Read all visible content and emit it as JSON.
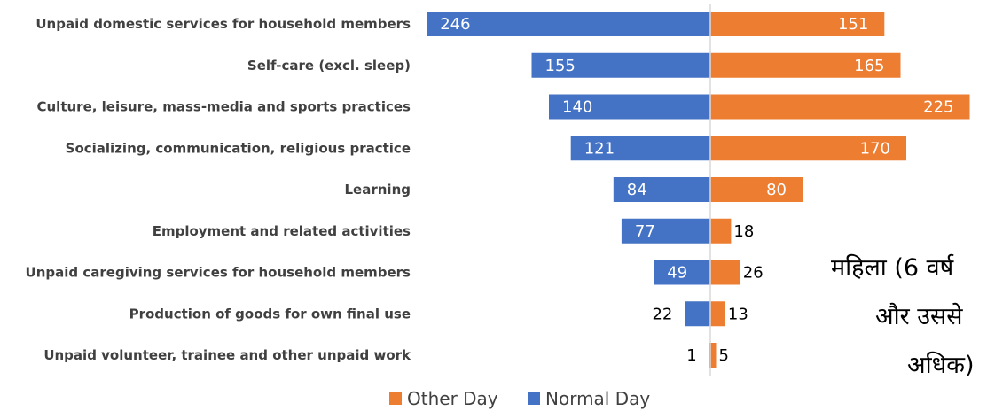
{
  "chart_data": {
    "type": "bar",
    "orientation": "horizontal-diverging",
    "categories": [
      "Unpaid domestic services for household members",
      "Self-care (excl. sleep)",
      "Culture, leisure, mass-media and sports practices",
      "Socializing, communication, religious practice",
      "Learning",
      "Employment and related activities",
      "Unpaid caregiving services for household members",
      "Production of goods for own final use",
      "Unpaid volunteer, trainee and other unpaid work"
    ],
    "series": [
      {
        "name": "Normal Day",
        "values": [
          246,
          155,
          140,
          121,
          84,
          77,
          49,
          22,
          1
        ],
        "side": "left"
      },
      {
        "name": "Other Day",
        "values": [
          151,
          165,
          225,
          170,
          80,
          18,
          26,
          13,
          5
        ],
        "side": "right"
      }
    ],
    "legend": {
      "position": "bottom",
      "order": [
        "Other Day",
        "Normal Day"
      ]
    },
    "colors": {
      "Normal Day": "#4472C4",
      "Other Day": "#ED7D31",
      "axis": "#D9D9D9",
      "category_text": "#404040"
    },
    "grid": false,
    "title": "",
    "xlabel": "",
    "ylabel": "",
    "side_annotation": [
      "महिला (6 वर्ष",
      "और उससे",
      "अधिक)"
    ]
  }
}
